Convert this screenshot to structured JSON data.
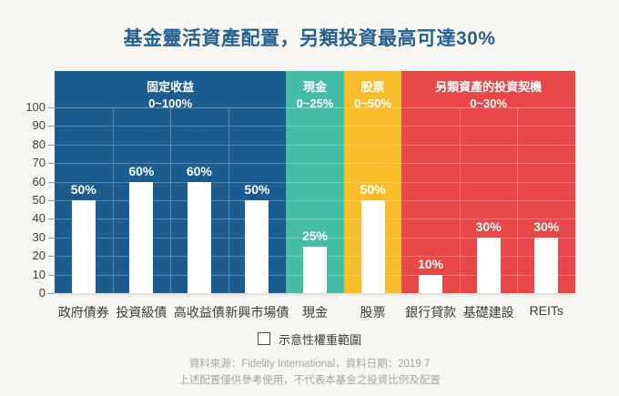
{
  "title": "基金靈活資產配置，另類投資最高可達30%",
  "title_color": "#25618f",
  "chart_data": {
    "type": "bar",
    "categories": [
      "政府債券",
      "投資級債",
      "高收益債",
      "新興市場債",
      "現金",
      "股票",
      "銀行貸款",
      "基礎建設",
      "REITs"
    ],
    "values": [
      50,
      60,
      60,
      50,
      25,
      50,
      10,
      30,
      30
    ],
    "value_labels": [
      "50%",
      "60%",
      "60%",
      "50%",
      "25%",
      "50%",
      "10%",
      "30%",
      "30%"
    ],
    "title": "基金靈活資產配置，另類投資最高可達30%",
    "xlabel": "",
    "ylabel": "",
    "ylim": [
      0,
      100
    ],
    "yticks": [
      0,
      10,
      20,
      30,
      40,
      50,
      60,
      70,
      80,
      90,
      100
    ],
    "grid": true,
    "legend_position": "bottom",
    "bar_color": "#ffffff",
    "sections": [
      {
        "title": "固定收益",
        "range": "0~100%",
        "color": "#1d5c8f",
        "span": 4
      },
      {
        "title": "現金",
        "range": "0~25%",
        "color": "#45bda5",
        "span": 1
      },
      {
        "title": "股票",
        "range": "0~50%",
        "color": "#f9bd2b",
        "span": 1
      },
      {
        "title": "另類資產的投資契機",
        "range": "0~30%",
        "color": "#e84747",
        "span": 3
      }
    ]
  },
  "legend": {
    "label": "示意性權重範圍",
    "swatch_color": "#ffffff",
    "swatch_border": "#4a4a44"
  },
  "footer": {
    "line1": "資料來源：Fidelity International，資料日期：2019.7",
    "line2": "上述配置僅供參考使用，不代表本基金之投資比例及配置"
  }
}
